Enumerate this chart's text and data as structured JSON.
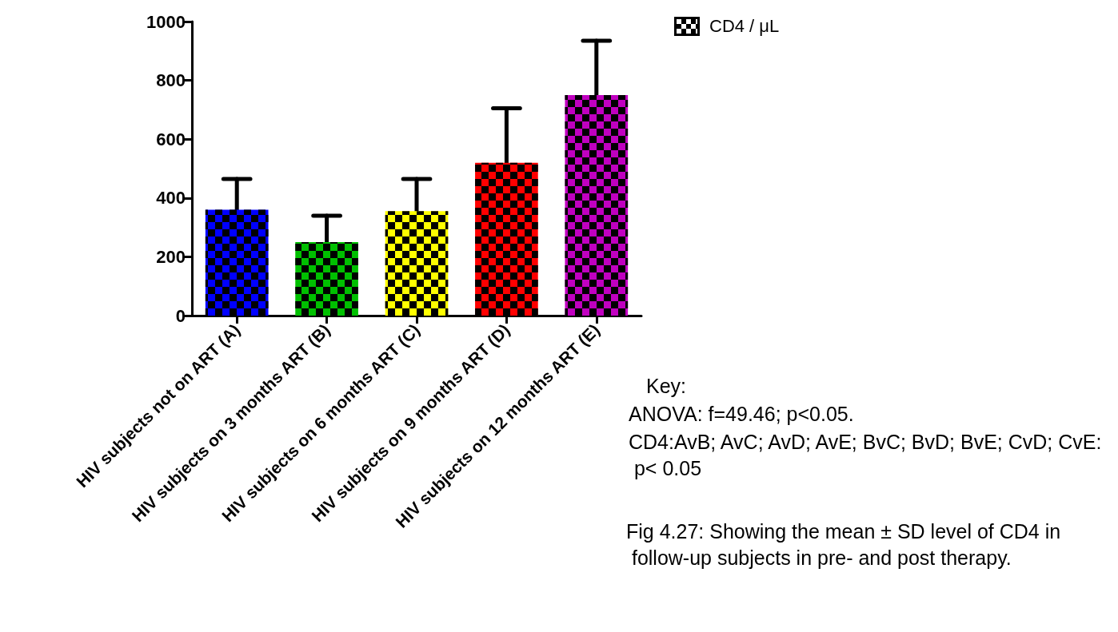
{
  "chart_data": {
    "type": "bar",
    "categories": [
      "HIV subjects not on ART (A)",
      "HIV subjects on 3 months ART (B)",
      "HIV subjects on 6 months ART (C)",
      "HIV subjects on 9 months ART (D)",
      "HIV subjects on 12 months ART (E)"
    ],
    "series": [
      {
        "name": "CD4 / μL",
        "color": "#000000",
        "values": [
          360,
          250,
          355,
          520,
          750
        ],
        "colors": [
          "#0000ff",
          "#00c000",
          "#ffff00",
          "#ff0000",
          "#c000c0"
        ],
        "errors": [
          [
            360,
            465
          ],
          [
            250,
            340
          ],
          [
            355,
            465
          ],
          [
            520,
            705
          ],
          [
            750,
            935
          ]
        ]
      }
    ],
    "ylim": [
      0,
      1000
    ],
    "yticks": [
      0,
      200,
      400,
      600,
      800,
      1000
    ],
    "grid": false,
    "legend": "top right",
    "annotations": [
      "Key:",
      "ANOVA: f=49.46; p<0.05.",
      "CD4:AvB; AvC; AvD; AvE; BvC; BvD; BvE; CvD; CvE: p< 0.05",
      "Fig 4.27: Showing the mean ± SD level of CD4 in follow-up subjects in pre- and post therapy."
    ]
  }
}
